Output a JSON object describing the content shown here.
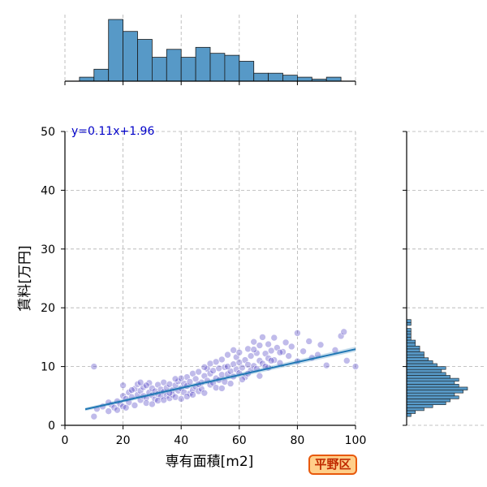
{
  "chart_data": {
    "type": "scatter",
    "xlabel": "専有面積[m2]",
    "ylabel": "賃料[万円]",
    "xlim": [
      0,
      100
    ],
    "ylim": [
      0,
      50
    ],
    "x_ticks": [
      "0",
      "20",
      "40",
      "60",
      "80",
      "100"
    ],
    "y_ticks": [
      "0",
      "10",
      "20",
      "30",
      "40",
      "50"
    ],
    "grid": true,
    "annotation": "y=0.11x+1.96",
    "regression": {
      "slope": 0.11,
      "intercept": 1.96,
      "x_range": [
        7,
        100
      ]
    },
    "badge": "平野区",
    "points": [
      [
        10,
        1.5
      ],
      [
        10,
        10
      ],
      [
        11,
        2.8
      ],
      [
        13,
        3.2
      ],
      [
        15,
        2.4
      ],
      [
        16,
        3.5
      ],
      [
        17,
        3.0
      ],
      [
        18,
        4.1
      ],
      [
        19,
        3.6
      ],
      [
        20,
        5.0
      ],
      [
        20,
        3.2
      ],
      [
        20,
        6.8
      ],
      [
        21,
        4.5
      ],
      [
        22,
        3.9
      ],
      [
        22,
        5.6
      ],
      [
        23,
        4.8
      ],
      [
        24,
        6.2
      ],
      [
        24,
        3.4
      ],
      [
        25,
        5.2
      ],
      [
        25,
        7.0
      ],
      [
        26,
        4.3
      ],
      [
        26,
        5.9
      ],
      [
        27,
        5.0
      ],
      [
        27,
        6.5
      ],
      [
        28,
        4.7
      ],
      [
        28,
        3.8
      ],
      [
        29,
        5.6
      ],
      [
        29,
        7.2
      ],
      [
        30,
        5.1
      ],
      [
        30,
        6.3
      ],
      [
        31,
        4.4
      ],
      [
        31,
        5.8
      ],
      [
        32,
        6.9
      ],
      [
        32,
        5.3
      ],
      [
        33,
        4.9
      ],
      [
        33,
        6.1
      ],
      [
        34,
        5.7
      ],
      [
        34,
        7.3
      ],
      [
        35,
        5.0
      ],
      [
        35,
        6.4
      ],
      [
        36,
        4.6
      ],
      [
        36,
        7.0
      ],
      [
        37,
        6.0
      ],
      [
        37,
        5.2
      ],
      [
        38,
        6.8
      ],
      [
        38,
        4.8
      ],
      [
        39,
        5.9
      ],
      [
        39,
        7.5
      ],
      [
        40,
        6.3
      ],
      [
        40,
        4.5
      ],
      [
        41,
        7.1
      ],
      [
        41,
        5.6
      ],
      [
        42,
        6.7
      ],
      [
        42,
        8.2
      ],
      [
        43,
        5.4
      ],
      [
        43,
        7.4
      ],
      [
        44,
        6.0
      ],
      [
        44,
        8.8
      ],
      [
        45,
        6.6
      ],
      [
        45,
        7.9
      ],
      [
        46,
        5.8
      ],
      [
        46,
        9.1
      ],
      [
        47,
        7.3
      ],
      [
        47,
        6.2
      ],
      [
        48,
        8.4
      ],
      [
        48,
        5.5
      ],
      [
        49,
        7.6
      ],
      [
        49,
        9.6
      ],
      [
        50,
        6.9
      ],
      [
        50,
        8.8
      ],
      [
        50,
        10.5
      ],
      [
        51,
        7.2
      ],
      [
        51,
        9.3
      ],
      [
        52,
        8.0
      ],
      [
        52,
        6.4
      ],
      [
        53,
        9.7
      ],
      [
        53,
        7.7
      ],
      [
        54,
        8.6
      ],
      [
        54,
        11.2
      ],
      [
        55,
        7.4
      ],
      [
        55,
        9.9
      ],
      [
        56,
        8.7
      ],
      [
        56,
        12.0
      ],
      [
        57,
        9.2
      ],
      [
        57,
        7.1
      ],
      [
        58,
        10.4
      ],
      [
        58,
        8.3
      ],
      [
        59,
        9.5
      ],
      [
        59,
        11.6
      ],
      [
        60,
        8.9
      ],
      [
        60,
        10.7
      ],
      [
        60,
        12.4
      ],
      [
        61,
        9.8
      ],
      [
        62,
        11.1
      ],
      [
        62,
        8.2
      ],
      [
        63,
        10.3
      ],
      [
        63,
        13.0
      ],
      [
        64,
        9.4
      ],
      [
        64,
        11.8
      ],
      [
        65,
        10.1
      ],
      [
        65,
        14.2
      ],
      [
        66,
        12.3
      ],
      [
        66,
        9.6
      ],
      [
        67,
        11.0
      ],
      [
        67,
        13.6
      ],
      [
        68,
        10.5
      ],
      [
        68,
        15.0
      ],
      [
        69,
        12.2
      ],
      [
        70,
        11.4
      ],
      [
        70,
        13.8
      ],
      [
        70,
        9.8
      ],
      [
        71,
        12.7
      ],
      [
        72,
        14.9
      ],
      [
        72,
        11.1
      ],
      [
        73,
        13.2
      ],
      [
        74,
        10.6
      ],
      [
        75,
        12.5
      ],
      [
        76,
        14.1
      ],
      [
        77,
        11.8
      ],
      [
        78,
        13.4
      ],
      [
        80,
        15.7
      ],
      [
        80,
        10.9
      ],
      [
        82,
        12.6
      ],
      [
        84,
        14.3
      ],
      [
        85,
        11.5
      ],
      [
        87,
        12.0
      ],
      [
        88,
        13.7
      ],
      [
        90,
        10.2
      ],
      [
        93,
        12.8
      ],
      [
        95,
        15.2
      ],
      [
        96,
        15.9
      ],
      [
        97,
        11.0
      ],
      [
        100,
        10.0
      ],
      [
        15,
        3.9
      ],
      [
        18,
        2.6
      ],
      [
        21,
        3.0
      ],
      [
        23,
        6.0
      ],
      [
        26,
        7.3
      ],
      [
        28,
        6.8
      ],
      [
        30,
        3.6
      ],
      [
        32,
        4.2
      ],
      [
        34,
        4.3
      ],
      [
        36,
        5.5
      ],
      [
        38,
        7.9
      ],
      [
        40,
        8.0
      ],
      [
        42,
        4.9
      ],
      [
        44,
        5.2
      ],
      [
        46,
        7.0
      ],
      [
        48,
        9.9
      ],
      [
        52,
        10.8
      ],
      [
        54,
        6.3
      ],
      [
        56,
        10.0
      ],
      [
        58,
        12.8
      ],
      [
        61,
        7.8
      ],
      [
        63,
        8.8
      ],
      [
        65,
        12.9
      ],
      [
        67,
        8.4
      ],
      [
        69,
        10.0
      ],
      [
        71,
        11.0
      ],
      [
        74,
        12.4
      ]
    ],
    "x_hist": {
      "bin_start": 0,
      "bin_width": 5,
      "counts": [
        0,
        2,
        6,
        31,
        25,
        21,
        12,
        16,
        12,
        17,
        14,
        13,
        10,
        4,
        4,
        3,
        2,
        1,
        2,
        0
      ]
    },
    "y_hist": {
      "bin_start": 0,
      "bin_width": 0.5,
      "counts": [
        0,
        0,
        0,
        1,
        2,
        4,
        6,
        9,
        10,
        12,
        11,
        13,
        14,
        12,
        11,
        12,
        10,
        9,
        8,
        9,
        7,
        6,
        5,
        4,
        4,
        3,
        3,
        2,
        2,
        1,
        1,
        1,
        1,
        0,
        1,
        1,
        0,
        0,
        0,
        0
      ]
    }
  },
  "styles": {
    "point_fill": "#4b3bc4",
    "point_edge": "#ffffff",
    "fit_line": "#1f77b4",
    "hist_fill": "#5799c7",
    "eq_color": "#0000c8",
    "grid": "#b0b0b0"
  }
}
